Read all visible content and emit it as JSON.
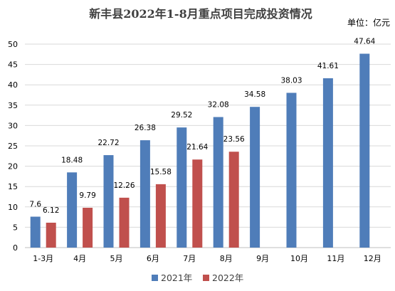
{
  "chart_data": {
    "type": "bar",
    "title": "新丰县2022年1-8月重点项目完成投资情况",
    "unit_label": "单位：亿元",
    "categories": [
      "1-3月",
      "4月",
      "5月",
      "6月",
      "7月",
      "8月",
      "9月",
      "10月",
      "11月",
      "12月"
    ],
    "series": [
      {
        "name": "2021年",
        "color": "#4F7DB9",
        "values": [
          7.6,
          18.48,
          22.72,
          26.38,
          29.52,
          32.08,
          34.58,
          38.03,
          41.61,
          47.64
        ]
      },
      {
        "name": "2022年",
        "color": "#C0504D",
        "values": [
          6.12,
          9.79,
          12.26,
          15.58,
          21.64,
          23.56,
          null,
          null,
          null,
          null
        ]
      }
    ],
    "ylim": [
      0,
      50
    ],
    "yticks": [
      0,
      5,
      10,
      15,
      20,
      25,
      30,
      35,
      40,
      45,
      50
    ],
    "grid": true,
    "legend": "bottom"
  }
}
